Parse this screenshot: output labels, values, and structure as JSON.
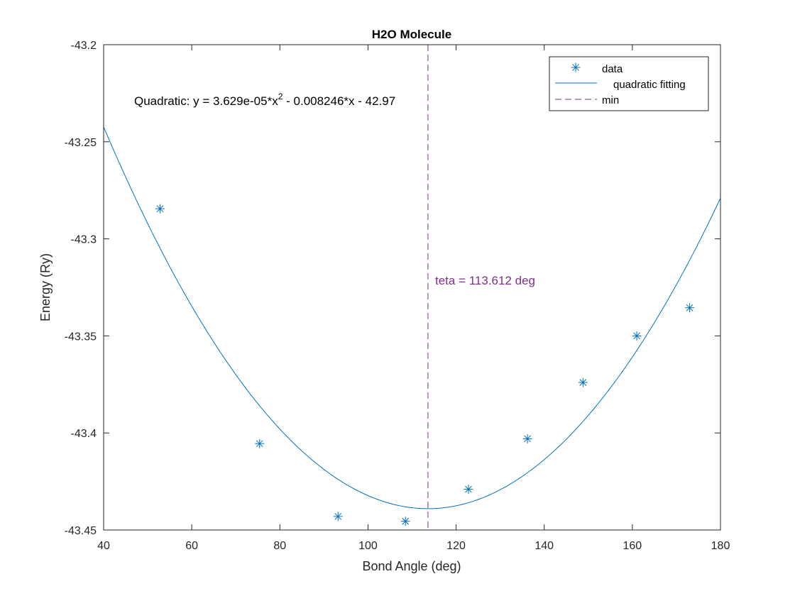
{
  "chart_data": {
    "type": "scatter",
    "title": "H2O Molecule",
    "xlabel": "Bond Angle (deg)",
    "ylabel": "Energy (Ry)",
    "xlim": [
      40,
      180
    ],
    "ylim": [
      -43.45,
      -43.2
    ],
    "x_ticks": [
      40,
      60,
      80,
      100,
      120,
      140,
      160,
      180
    ],
    "y_ticks": [
      -43.45,
      -43.4,
      -43.35,
      -43.3,
      -43.25,
      -43.2
    ],
    "x_tick_labels": [
      "40",
      "60",
      "80",
      "100",
      "120",
      "140",
      "160",
      "180"
    ],
    "y_tick_labels": [
      "-43.45",
      "-43.4",
      "-43.35",
      "-43.3",
      "-43.25",
      "-43.2"
    ],
    "grid": false,
    "legend_position": "top-right",
    "series": [
      {
        "name": "data",
        "type": "scatter",
        "marker": "asterisk",
        "color": "#0072BD",
        "x": [
          52.8,
          75.4,
          93.2,
          108.5,
          122.8,
          136.2,
          148.8,
          161.0,
          173.0
        ],
        "y": [
          -43.2845,
          -43.4055,
          -43.443,
          -43.4455,
          -43.429,
          -43.403,
          -43.374,
          -43.35,
          -43.3355
        ]
      },
      {
        "name": "quadratic fitting",
        "type": "line",
        "color": "#0072BD",
        "coefficients": [
          3.629e-05,
          -0.008246,
          -42.97
        ]
      },
      {
        "name": "min",
        "type": "vline",
        "color": "#7E2F8E",
        "x": 113.612
      }
    ],
    "annotations": [
      {
        "text_prefix": "Quadratic:  y = 3.629e-05*x",
        "superscript": "2",
        "text_suffix": " - 0.008246*x - 42.97"
      },
      {
        "text": "teta = 113.612 deg"
      }
    ]
  }
}
